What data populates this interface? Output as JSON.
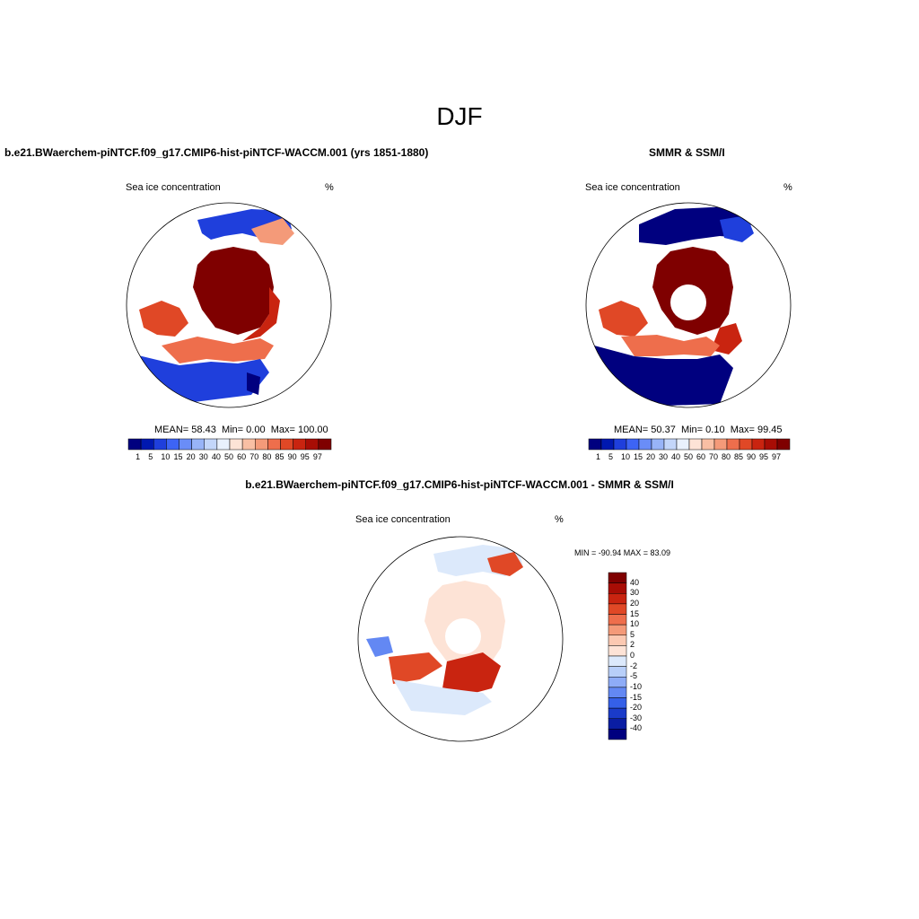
{
  "title": "DJF",
  "panels": [
    {
      "title": "b.e21.BWaerchem-piNTCF.f09_g17.CMIP6-hist-piNTCF-WACCM.001 (yrs 1851-1880)",
      "left_label": "Sea ice concentration",
      "right_label": "%",
      "stats": {
        "mean_label": "MEAN=",
        "mean": "58.43",
        "min_label": "Min=",
        "min": "0.00",
        "max_label": "Max=",
        "max": "100.00"
      },
      "colorbar_ticks": [
        "1",
        "5",
        "10",
        "15",
        "20",
        "30",
        "40",
        "50",
        "60",
        "70",
        "80",
        "85",
        "90",
        "95",
        "97"
      ]
    },
    {
      "title": "SMMR & SSM/I",
      "left_label": "Sea ice concentration",
      "right_label": "%",
      "stats": {
        "mean_label": "MEAN=",
        "mean": "50.37",
        "min_label": "Min=",
        "min": "0.10",
        "max_label": "Max=",
        "max": "99.45"
      },
      "colorbar_ticks": [
        "1",
        "5",
        "10",
        "15",
        "20",
        "30",
        "40",
        "50",
        "60",
        "70",
        "80",
        "85",
        "90",
        "95",
        "97"
      ]
    },
    {
      "title": "b.e21.BWaerchem-piNTCF.f09_g17.CMIP6-hist-piNTCF-WACCM.001 - SMMR & SSM/I",
      "left_label": "Sea ice concentration",
      "right_label": "%",
      "minmax": "MIN = -90.94 MAX =  83.09",
      "colorbar_ticks": [
        "40",
        "30",
        "20",
        "15",
        "10",
        "5",
        "2",
        "0",
        "-2",
        "-5",
        "-10",
        "-15",
        "-20",
        "-30",
        "-40"
      ]
    }
  ],
  "colors": {
    "conc_scale": [
      "#00007f",
      "#0018b0",
      "#1f3fdc",
      "#3d64f5",
      "#6a8df7",
      "#98b4f8",
      "#c3d6fa",
      "#e9f1fd",
      "#fde3d6",
      "#f9bfa4",
      "#f49a79",
      "#ee6e4c",
      "#e04826",
      "#c92410",
      "#a80d05",
      "#7f0000"
    ],
    "diff_scale": [
      "#7f0000",
      "#a80d05",
      "#c92410",
      "#e04826",
      "#ee6e4c",
      "#f49a79",
      "#fbc9b2",
      "#fde3d6",
      "#dce9fb",
      "#b8cff9",
      "#8eacf7",
      "#6388f3",
      "#3560e8",
      "#1a3bc9",
      "#0a1da3",
      "#00007f"
    ],
    "land": "#ffffff",
    "coast": "#000000"
  }
}
